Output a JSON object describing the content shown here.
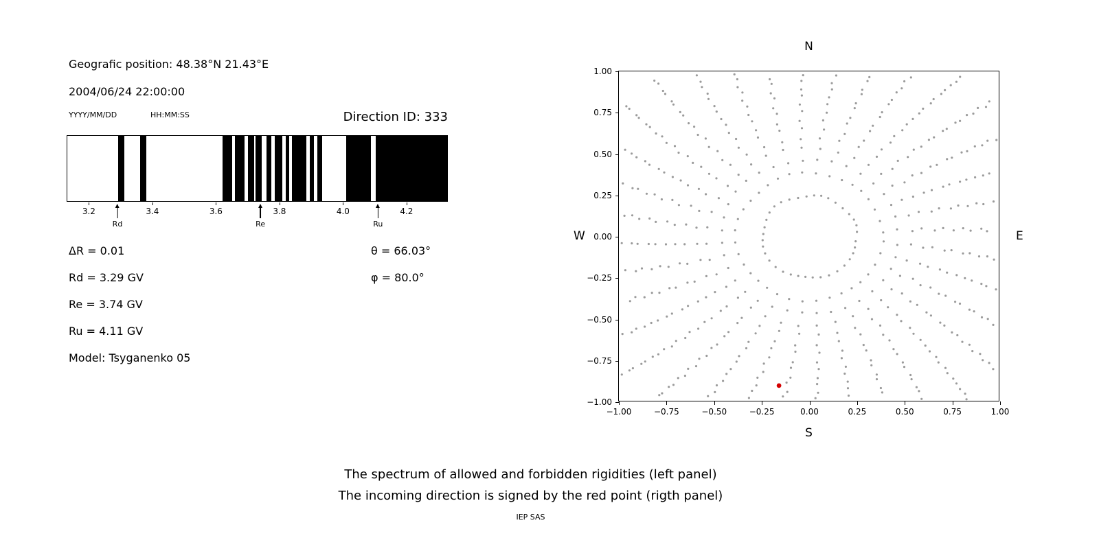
{
  "header": {
    "position": "Geografic position: 48.38°N 21.43°E",
    "datetime": "2004/06/24 22:00:00",
    "date_format_hint": "YYYY/MM/DD",
    "time_format_hint": "HH:MM:SS",
    "direction_id": "Direction ID: 333"
  },
  "left_panel": {
    "delta_r": "ΔR = 0.01",
    "theta": "θ = 66.03°",
    "rd": "Rd = 3.29 GV",
    "phi": "φ = 80.0°",
    "re": "Re = 3.74 GV",
    "ru": "Ru = 4.11 GV",
    "model": "Model: Tsyganenko 05"
  },
  "footer": {
    "caption_line1": "The spectrum of allowed and forbidden rigidities (left panel)",
    "caption_line2": "The incoming direction is signed by the red point (rigth panel)",
    "credit": "IEP SAS"
  },
  "chart_data": [
    {
      "name": "rigidity-spectrum",
      "type": "heatmap",
      "description": "Barcode of allowed (black) and forbidden (white) rigidities in GV",
      "xlim": [
        3.13,
        4.33
      ],
      "xtick_values": [
        3.2,
        3.4,
        3.6,
        3.8,
        4.0,
        4.2
      ],
      "xtick_labels": [
        "3.2",
        "3.4",
        "3.6",
        "3.8",
        "4.0",
        "4.2"
      ],
      "band_color": "#000000",
      "background": "#ffffff",
      "allowed_bands_gv": [
        [
          3.29,
          3.31
        ],
        [
          3.36,
          3.38
        ],
        [
          3.62,
          3.65
        ],
        [
          3.66,
          3.69
        ],
        [
          3.7,
          3.72
        ],
        [
          3.725,
          3.745
        ],
        [
          3.76,
          3.775
        ],
        [
          3.785,
          3.81
        ],
        [
          3.82,
          3.83
        ],
        [
          3.84,
          3.885
        ],
        [
          3.895,
          3.91
        ],
        [
          3.92,
          3.935
        ],
        [
          4.01,
          4.09
        ],
        [
          4.105,
          4.33
        ]
      ],
      "markers": [
        {
          "label": "Rd",
          "value_gv": 3.29
        },
        {
          "label": "Re",
          "value_gv": 3.74
        },
        {
          "label": "Ru",
          "value_gv": 4.11
        }
      ]
    },
    {
      "name": "incoming-direction",
      "type": "scatter",
      "xlim": [
        -1.0,
        1.0
      ],
      "ylim": [
        -1.0,
        1.0
      ],
      "tick_values": [
        -1.0,
        -0.75,
        -0.5,
        -0.25,
        0.0,
        0.25,
        0.5,
        0.75,
        1.0
      ],
      "tick_labels": [
        "−1.00",
        "−0.75",
        "−0.50",
        "−0.25",
        "0.00",
        "0.25",
        "0.50",
        "0.75",
        "1.00"
      ],
      "compass": {
        "north": "N",
        "south": "S",
        "east": "E",
        "west": "W"
      },
      "grid_dots": {
        "spoke_count": 36,
        "spoke_step_deg": 10,
        "r_inner": 0.25,
        "r_outer": 1.32,
        "dots_per_spoke": 22,
        "color": "#9b9b9b"
      },
      "red_point": {
        "x": -0.16,
        "y": -0.9,
        "color": "#d40000"
      }
    }
  ]
}
